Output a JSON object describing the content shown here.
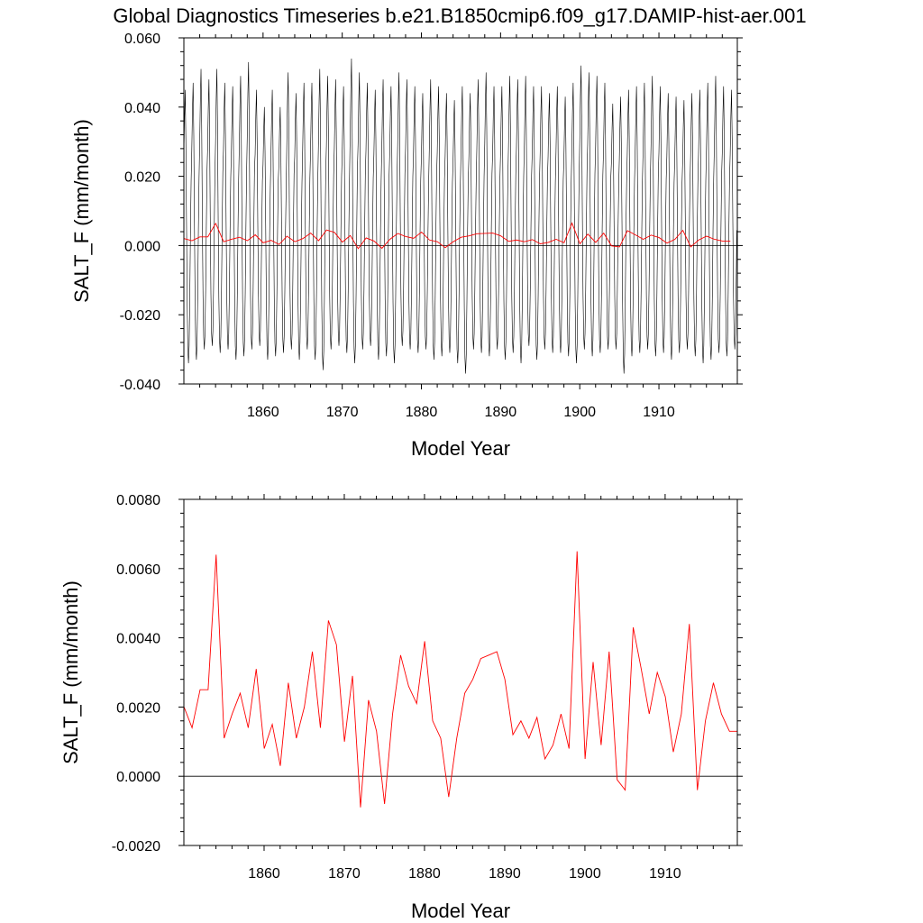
{
  "title": "Global Diagnostics Timeseries b.e21.B1850cmip6.f09_g17.DAMIP-hist-aer.001",
  "colors": {
    "monthly": "#000000",
    "annual": "#ff0000",
    "zero_line": "#000000"
  },
  "chart_data": [
    {
      "type": "line",
      "xlabel": "Model Year",
      "ylabel": "SALT_F (mm/month)",
      "xlim": [
        1850,
        1919.9
      ],
      "ylim": [
        -0.04,
        0.06
      ],
      "xticks": [
        1860,
        1870,
        1880,
        1890,
        1900,
        1910
      ],
      "xtick_labels": [
        "1860",
        "1870",
        "1880",
        "1890",
        "1900",
        "1910"
      ],
      "yticks": [
        -0.04,
        -0.02,
        0.0,
        0.02,
        0.04,
        0.06
      ],
      "ytick_labels": [
        "-0.040",
        "-0.020",
        "0.000",
        "0.020",
        "0.040",
        "0.060"
      ],
      "reference_line": 0,
      "monthly_series": {
        "x_start": 1850,
        "step_months": 1,
        "seasonal_cycle_shape": [
          0.024,
          0.034,
          0.041,
          0.028,
          0.006,
          -0.016,
          -0.029,
          -0.033,
          -0.028,
          -0.014,
          0.004,
          0.017
        ],
        "annual_peak_values": [
          0.045,
          0.047,
          0.051,
          0.048,
          0.051,
          0.047,
          0.046,
          0.049,
          0.053,
          0.045,
          0.04,
          0.045,
          0.04,
          0.05,
          0.044,
          0.047,
          0.047,
          0.051,
          0.049,
          0.048,
          0.046,
          0.054,
          0.05,
          0.047,
          0.045,
          0.048,
          0.046,
          0.05,
          0.048,
          0.046,
          0.044,
          0.048,
          0.046,
          0.044,
          0.042,
          0.046,
          0.044,
          0.048,
          0.05,
          0.046,
          0.046,
          0.049,
          0.048,
          0.049,
          0.046,
          0.046,
          0.044,
          0.046,
          0.043,
          0.047,
          0.052,
          0.05,
          0.049,
          0.047,
          0.041,
          0.043,
          0.045,
          0.046,
          0.047,
          0.049,
          0.046,
          0.044,
          0.043,
          0.042,
          0.044,
          0.045,
          0.047,
          0.049,
          0.046,
          0.045
        ],
        "annual_trough_values": [
          -0.034,
          -0.033,
          -0.03,
          -0.029,
          -0.031,
          -0.03,
          -0.033,
          -0.032,
          -0.03,
          -0.029,
          -0.033,
          -0.032,
          -0.031,
          -0.03,
          -0.033,
          -0.03,
          -0.033,
          -0.036,
          -0.03,
          -0.029,
          -0.031,
          -0.034,
          -0.03,
          -0.029,
          -0.033,
          -0.032,
          -0.034,
          -0.029,
          -0.03,
          -0.031,
          -0.03,
          -0.033,
          -0.032,
          -0.031,
          -0.034,
          -0.037,
          -0.03,
          -0.031,
          -0.032,
          -0.03,
          -0.033,
          -0.031,
          -0.034,
          -0.029,
          -0.033,
          -0.03,
          -0.031,
          -0.031,
          -0.032,
          -0.034,
          -0.03,
          -0.032,
          -0.031,
          -0.03,
          -0.03,
          -0.037,
          -0.032,
          -0.031,
          -0.03,
          -0.032,
          -0.031,
          -0.033,
          -0.031,
          -0.03,
          -0.032,
          -0.034,
          -0.033,
          -0.031,
          -0.032,
          -0.03
        ]
      },
      "annual_series": {
        "source": "annual_mean"
      }
    },
    {
      "type": "line",
      "xlabel": "Model Year",
      "ylabel": "SALT_F (mm/month)",
      "xlim": [
        1850,
        1919.0
      ],
      "ylim": [
        -0.002,
        0.008
      ],
      "xticks": [
        1860,
        1870,
        1880,
        1890,
        1900,
        1910
      ],
      "xtick_labels": [
        "1860",
        "1870",
        "1880",
        "1890",
        "1900",
        "1910"
      ],
      "yticks": [
        -0.002,
        0.0,
        0.002,
        0.004,
        0.006,
        0.008
      ],
      "ytick_labels": [
        "-0.0020",
        "0.0000",
        "0.0020",
        "0.0040",
        "0.0060",
        "0.0080"
      ],
      "reference_line": 0
    }
  ],
  "annual_mean": {
    "x": [
      1850,
      1851,
      1852,
      1853,
      1854,
      1855,
      1856,
      1857,
      1858,
      1859,
      1860,
      1861,
      1862,
      1863,
      1864,
      1865,
      1866,
      1867,
      1868,
      1869,
      1870,
      1871,
      1872,
      1873,
      1874,
      1875,
      1876,
      1877,
      1878,
      1879,
      1880,
      1881,
      1882,
      1883,
      1884,
      1885,
      1886,
      1887,
      1888,
      1889,
      1890,
      1891,
      1892,
      1893,
      1894,
      1895,
      1896,
      1897,
      1898,
      1899,
      1900,
      1901,
      1902,
      1903,
      1904,
      1905,
      1906,
      1907,
      1908,
      1909,
      1910,
      1911,
      1912,
      1913,
      1914,
      1915,
      1916,
      1917,
      1918,
      1919
    ],
    "y": [
      0.002,
      0.0014,
      0.0025,
      0.0025,
      0.0064,
      0.0011,
      0.0018,
      0.0024,
      0.0014,
      0.0031,
      0.0008,
      0.0015,
      0.0003,
      0.0027,
      0.0011,
      0.002,
      0.0036,
      0.0014,
      0.0045,
      0.0038,
      0.001,
      0.0029,
      -0.0009,
      0.0022,
      0.0013,
      -0.0008,
      0.0018,
      0.0035,
      0.0026,
      0.0021,
      0.0039,
      0.0016,
      0.0011,
      -0.0006,
      0.0011,
      0.0024,
      0.0028,
      0.0034,
      0.0035,
      0.0036,
      0.0028,
      0.0012,
      0.0016,
      0.0011,
      0.0017,
      0.0005,
      0.0009,
      0.0018,
      0.0008,
      0.0065,
      0.0005,
      0.0033,
      0.0009,
      0.0036,
      -0.0001,
      -0.0004,
      0.0043,
      0.0031,
      0.0018,
      0.003,
      0.0023,
      0.0007,
      0.0018,
      0.0044,
      -0.0004,
      0.0016,
      0.0027,
      0.0018,
      0.0013,
      0.0013
    ]
  }
}
